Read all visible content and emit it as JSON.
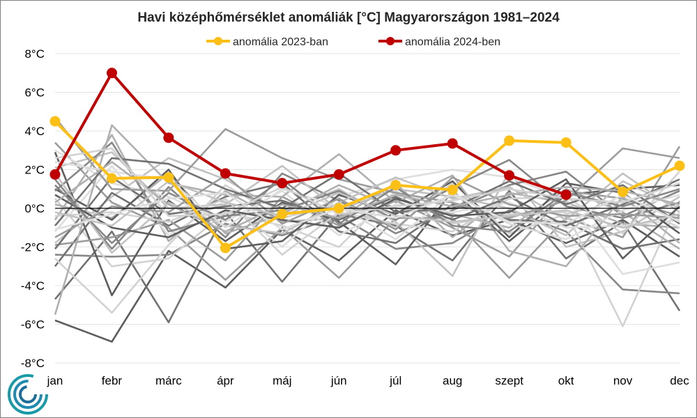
{
  "chart_data": {
    "type": "line",
    "title": "Havi középhőmérséklet anomáliák [°C] Magyarországon 1981–2024",
    "xlabel": "",
    "ylabel": "",
    "categories": [
      "jan",
      "febr",
      "márc",
      "ápr",
      "máj",
      "jún",
      "júl",
      "aug",
      "szept",
      "okt",
      "nov",
      "dec"
    ],
    "y_ticks": [
      "-8°C",
      "-6°C",
      "-4°C",
      "-2°C",
      "0°C",
      "2°C",
      "4°C",
      "6°C",
      "8°C"
    ],
    "ylim": [
      -8,
      8
    ],
    "grid": true,
    "legend_position": "top",
    "series": [
      {
        "name": "anomália 2023-ban",
        "color": "#fbbf16",
        "values": [
          4.5,
          1.55,
          1.6,
          -2.05,
          -0.3,
          0.0,
          1.2,
          0.95,
          3.5,
          3.4,
          0.85,
          2.2
        ]
      },
      {
        "name": "anomália 2024-ben",
        "color": "#c00000",
        "values": [
          1.75,
          7.0,
          3.65,
          1.8,
          1.3,
          1.75,
          3.0,
          3.35,
          1.7,
          0.7,
          null,
          null
        ]
      }
    ],
    "background_series": [
      [
        -5.8,
        -6.9,
        -2.2,
        -4.1,
        -1.1,
        -2.7,
        -0.1,
        -1.4,
        -0.6,
        -1.8,
        -0.6,
        -2.5
      ],
      [
        -4.7,
        -1.2,
        -5.9,
        -0.2,
        -3.8,
        -0.3,
        -0.9,
        -2.7,
        0.9,
        -2.6,
        -0.7,
        -5.3
      ],
      [
        -2.4,
        -2.5,
        -2.4,
        -0.8,
        -1.4,
        -0.4,
        -2.1,
        -1.8,
        -0.1,
        -1.2,
        -4.2,
        -4.4
      ],
      [
        3.4,
        0.3,
        -1.0,
        -3.7,
        -1.0,
        -3.6,
        -0.5,
        -0.5,
        -3.6,
        -0.5,
        -1.5,
        3.2
      ],
      [
        -0.6,
        3.8,
        -1.7,
        0.9,
        -0.7,
        -0.5,
        1.3,
        -1.5,
        0.8,
        0.3,
        -0.8,
        -1.0
      ],
      [
        -1.8,
        0.6,
        2.6,
        1.5,
        -0.2,
        1.0,
        -0.7,
        -3.5,
        1.9,
        -2.0,
        -1.2,
        0.6
      ],
      [
        0.5,
        -3.0,
        -2.6,
        -0.2,
        -0.9,
        -2.0,
        0.9,
        -0.8,
        -0.3,
        -0.2,
        -6.1,
        0.4
      ],
      [
        -1.2,
        2.2,
        -1.4,
        0.4,
        -2.0,
        0.6,
        1.5,
        2.0,
        1.6,
        0.5,
        -3.4,
        -2.8
      ],
      [
        2.9,
        -4.5,
        0.4,
        -1.7,
        0.3,
        -0.7,
        -2.9,
        0.9,
        -1.7,
        0.7,
        1.0,
        1.2
      ],
      [
        -3.0,
        0.8,
        -0.9,
        0.6,
        1.3,
        -1.2,
        -1.8,
        0.2,
        -0.6,
        -0.7,
        -2.1,
        -1.6
      ],
      [
        1.5,
        -2.1,
        1.1,
        -1.5,
        1.8,
        0.4,
        -1.3,
        -0.1,
        1.2,
        1.9,
        -0.4,
        0.9
      ],
      [
        -1.9,
        -1.5,
        -0.6,
        -2.7,
        0.6,
        -0.9,
        0.4,
        -1.0,
        -2.5,
        0.9,
        0.5,
        -0.4
      ],
      [
        0.2,
        -0.5,
        1.8,
        -1.3,
        -0.3,
        1.2,
        0.0,
        -0.3,
        -1.0,
        1.0,
        -0.2,
        -2.1
      ],
      [
        2.1,
        2.9,
        0.0,
        0.2,
        2.2,
        -0.1,
        1.0,
        0.6,
        0.0,
        -1.4,
        1.4,
        0.0
      ],
      [
        -2.6,
        -5.4,
        -1.9,
        1.2,
        -0.5,
        0.2,
        -1.0,
        1.3,
        -1.3,
        -0.3,
        0.4,
        -1.0
      ],
      [
        3.0,
        1.3,
        0.6,
        -0.7,
        0.9,
        -1.4,
        0.2,
        -0.2,
        0.3,
        -1.0,
        -0.9,
        -0.6
      ],
      [
        1.0,
        -0.6,
        2.0,
        -2.1,
        -1.7,
        0.7,
        -0.3,
        1.4,
        -1.5,
        1.3,
        0.8,
        -1.3
      ],
      [
        -2.1,
        1.6,
        -0.3,
        0.1,
        0.4,
        -0.6,
        0.6,
        -0.6,
        0.6,
        -0.9,
        0.2,
        1.5
      ],
      [
        0.9,
        3.4,
        -1.2,
        -0.4,
        -0.1,
        0.9,
        -0.6,
        1.1,
        2.5,
        0.1,
        -0.5,
        0.3
      ],
      [
        4.7,
        1.0,
        0.9,
        4.1,
        2.6,
        1.5,
        0.8,
        0.3,
        -0.5,
        0.4,
        3.1,
        2.6
      ],
      [
        -5.5,
        4.3,
        1.3,
        0.7,
        0.6,
        2.8,
        0.3,
        1.7,
        -2.2,
        -3.0,
        0.6,
        -1.8
      ],
      [
        1.8,
        -2.3,
        0.3,
        -0.9,
        -1.3,
        0.3,
        1.6,
        0.5,
        1.1,
        -0.6,
        1.8,
        -0.2
      ],
      [
        -0.4,
        -0.2,
        -0.7,
        0.5,
        -2.4,
        -0.2,
        -0.8,
        -1.2,
        0.5,
        0.6,
        -1.3,
        1.9
      ],
      [
        2.4,
        1.9,
        1.5,
        -1.0,
        1.0,
        0.1,
        -1.6,
        0.8,
        -0.8,
        -1.6,
        -0.1,
        0.7
      ],
      [
        0.7,
        -1.0,
        -1.5,
        -0.1,
        -0.6,
        -1.0,
        0.5,
        -0.4,
        -0.2,
        1.5,
        -2.6,
        0.1
      ],
      [
        -0.9,
        2.6,
        2.3,
        1.0,
        0.0,
        1.8,
        -0.2,
        0.0,
        1.4,
        0.2,
        1.2,
        -0.8
      ],
      [
        1.2,
        -1.8,
        0.8,
        -0.6,
        1.5,
        -0.8,
        1.1,
        -0.9,
        -1.2,
        0.8,
        0.1,
        1.0
      ],
      [
        -1.5,
        0.1,
        -0.2,
        1.7,
        -0.8,
        0.5,
        -1.1,
        1.6,
        0.2,
        -0.4,
        -0.3,
        -0.5
      ],
      [
        0.3,
        2.4,
        0.2,
        -1.2,
        0.2,
        -0.5,
        0.7,
        0.1,
        0.7,
        1.1,
        0.9,
        0.2
      ],
      [
        -0.2,
        -0.9,
        1.4,
        0.3,
        -0.4,
        0.8,
        -0.4,
        -0.7,
        -0.4,
        -0.1,
        -1.0,
        -0.3
      ],
      [
        2.6,
        3.1,
        -0.4,
        -0.3,
        1.1,
        -0.3,
        0.1,
        0.4,
        1.0,
        0.5,
        0.3,
        1.3
      ],
      [
        -1.1,
        -0.3,
        0.5,
        0.8,
        -1.1,
        0.0,
        -0.5,
        0.7,
        -0.7,
        -0.8,
        0.7,
        -0.7
      ]
    ]
  }
}
